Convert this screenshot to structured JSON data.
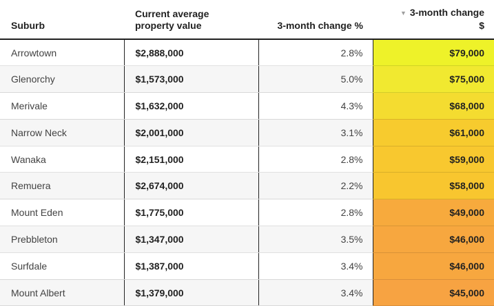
{
  "colors": {
    "header_text": "#212121",
    "body_text": "#424242",
    "header_rule": "#1f1f1f",
    "column_divider": "#212121",
    "alt_row_bg": "#f6f6f6",
    "sort_icon": "#9e9e9e"
  },
  "table": {
    "columns": [
      {
        "id": "suburb",
        "label": "Suburb"
      },
      {
        "id": "value",
        "label": "Current average property value"
      },
      {
        "id": "pct",
        "label": "3-month change %"
      },
      {
        "id": "change",
        "label": "3-month change",
        "unit": "$",
        "sort_icon": "▼",
        "sort_state": "descending"
      }
    ],
    "rows": [
      {
        "suburb": "Arrowtown",
        "value": "$2,888,000",
        "pct": "2.8%",
        "change": "$79,000",
        "heat_color": "#eef229"
      },
      {
        "suburb": "Glenorchy",
        "value": "$1,573,000",
        "pct": "5.0%",
        "change": "$75,000",
        "heat_color": "#f1e930"
      },
      {
        "suburb": "Merivale",
        "value": "$1,632,000",
        "pct": "4.3%",
        "change": "$68,000",
        "heat_color": "#f4dc30"
      },
      {
        "suburb": "Narrow Neck",
        "value": "$2,001,000",
        "pct": "3.1%",
        "change": "$61,000",
        "heat_color": "#f7cb2e"
      },
      {
        "suburb": "Wanaka",
        "value": "$2,151,000",
        "pct": "2.8%",
        "change": "$59,000",
        "heat_color": "#f8c82f"
      },
      {
        "suburb": "Remuera",
        "value": "$2,674,000",
        "pct": "2.2%",
        "change": "$58,000",
        "heat_color": "#f8c62f"
      },
      {
        "suburb": "Mount Eden",
        "value": "$1,775,000",
        "pct": "2.8%",
        "change": "$49,000",
        "heat_color": "#f7aa3d"
      },
      {
        "suburb": "Prebbleton",
        "value": "$1,347,000",
        "pct": "3.5%",
        "change": "$46,000",
        "heat_color": "#f7a73f"
      },
      {
        "suburb": "Surfdale",
        "value": "$1,387,000",
        "pct": "3.4%",
        "change": "$46,000",
        "heat_color": "#f7a73f"
      },
      {
        "suburb": "Mount Albert",
        "value": "$1,379,000",
        "pct": "3.4%",
        "change": "$45,000",
        "heat_color": "#f7a342"
      }
    ]
  },
  "chart_data": {
    "type": "table",
    "title": "",
    "columns": [
      "Suburb",
      "Current average property value",
      "3-month change %",
      "3-month change $"
    ],
    "sort": {
      "column": "3-month change $",
      "direction": "desc"
    },
    "heatmap_column": "3-month change $",
    "rows": [
      {
        "suburb": "Arrowtown",
        "current_average_property_value": 2888000,
        "three_month_change_pct": 2.8,
        "three_month_change_dollars": 79000
      },
      {
        "suburb": "Glenorchy",
        "current_average_property_value": 1573000,
        "three_month_change_pct": 5.0,
        "three_month_change_dollars": 75000
      },
      {
        "suburb": "Merivale",
        "current_average_property_value": 1632000,
        "three_month_change_pct": 4.3,
        "three_month_change_dollars": 68000
      },
      {
        "suburb": "Narrow Neck",
        "current_average_property_value": 2001000,
        "three_month_change_pct": 3.1,
        "three_month_change_dollars": 61000
      },
      {
        "suburb": "Wanaka",
        "current_average_property_value": 2151000,
        "three_month_change_pct": 2.8,
        "three_month_change_dollars": 59000
      },
      {
        "suburb": "Remuera",
        "current_average_property_value": 2674000,
        "three_month_change_pct": 2.2,
        "three_month_change_dollars": 58000
      },
      {
        "suburb": "Mount Eden",
        "current_average_property_value": 1775000,
        "three_month_change_pct": 2.8,
        "three_month_change_dollars": 49000
      },
      {
        "suburb": "Prebbleton",
        "current_average_property_value": 1347000,
        "three_month_change_pct": 3.5,
        "three_month_change_dollars": 46000
      },
      {
        "suburb": "Surfdale",
        "current_average_property_value": 1387000,
        "three_month_change_pct": 3.4,
        "three_month_change_dollars": 46000
      },
      {
        "suburb": "Mount Albert",
        "current_average_property_value": 1379000,
        "three_month_change_pct": 3.4,
        "three_month_change_dollars": 45000
      }
    ]
  }
}
